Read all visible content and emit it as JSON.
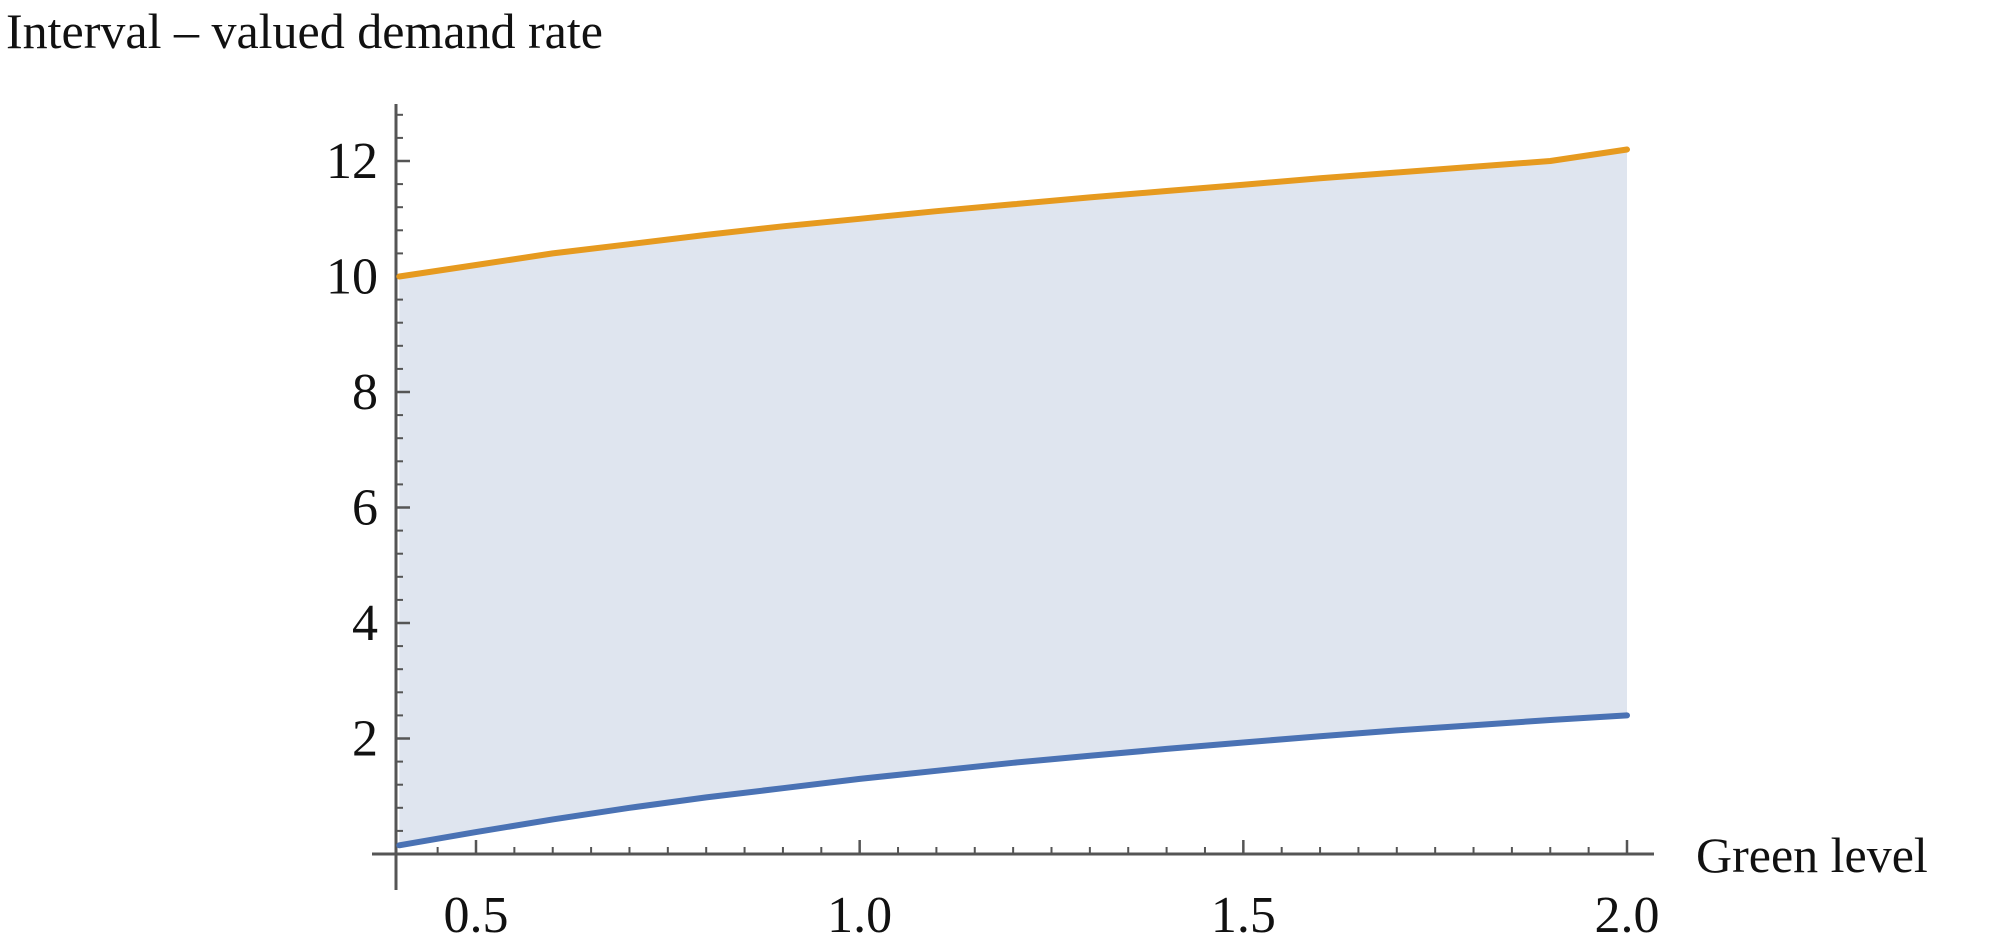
{
  "chart_data": {
    "type": "area",
    "title": "",
    "ylabel": "Interval – valued demand rate",
    "xlabel": "Green level",
    "xlim": [
      0.4,
      2.0
    ],
    "ylim": [
      0,
      12.8
    ],
    "x_ticks": [
      "0.5",
      "1.0",
      "1.5",
      "2.0"
    ],
    "y_ticks": [
      "2",
      "4",
      "6",
      "8",
      "10",
      "12"
    ],
    "grid": false,
    "series": [
      {
        "color": "#e69a1f",
        "x": [
          0.4,
          0.5,
          0.6,
          0.7,
          0.8,
          0.9,
          1.0,
          1.1,
          1.2,
          1.3,
          1.4,
          1.5,
          1.6,
          1.7,
          1.8,
          1.9,
          2.0
        ],
        "y": [
          10.0,
          10.2,
          10.4,
          10.56,
          10.72,
          10.87,
          11.0,
          11.13,
          11.25,
          11.37,
          11.48,
          11.59,
          11.7,
          11.8,
          11.9,
          12.0,
          12.2
        ]
      },
      {
        "color": "#4a72b4",
        "x": [
          0.4,
          0.5,
          0.6,
          0.7,
          0.8,
          0.9,
          1.0,
          1.1,
          1.2,
          1.3,
          1.4,
          1.5,
          1.6,
          1.7,
          1.8,
          1.9,
          2.0
        ],
        "y": [
          0.15,
          0.38,
          0.6,
          0.8,
          0.98,
          1.14,
          1.3,
          1.44,
          1.58,
          1.7,
          1.82,
          1.93,
          2.04,
          2.14,
          2.23,
          2.32,
          2.4
        ]
      }
    ],
    "fill_between": {
      "color": "#dfe5ef"
    },
    "colors": {
      "axis": "#555555",
      "text": "#111111"
    }
  }
}
